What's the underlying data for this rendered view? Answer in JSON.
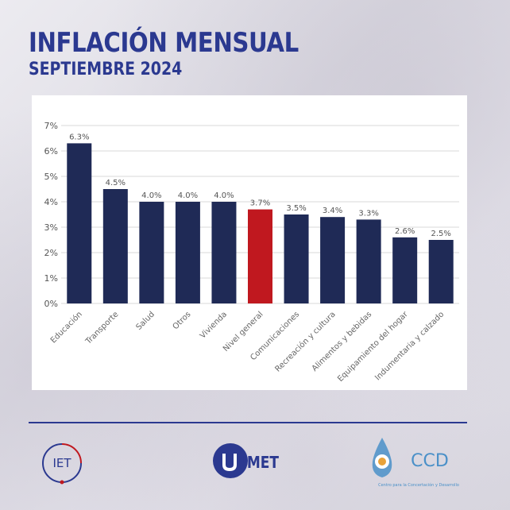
{
  "header": {
    "title": "INFLACIÓN MENSUAL",
    "subtitle": "SEPTIEMBRE 2024"
  },
  "colors": {
    "brand_blue": "#2b3990",
    "bar_default": "#1f2a56",
    "bar_highlight": "#c0181f",
    "ccd_blue": "#4a90c8"
  },
  "chart_data": {
    "type": "bar",
    "title": "",
    "xlabel": "",
    "ylabel": "",
    "ylim": [
      0,
      7
    ],
    "yticks": [
      "0%",
      "1%",
      "2%",
      "3%",
      "4%",
      "5%",
      "6%",
      "7%"
    ],
    "grid": true,
    "categories": [
      "Educación",
      "Transporte",
      "Salud",
      "Otros",
      "Vivienda",
      "Nivel general",
      "Comunicaciones",
      "Recreación y cultura",
      "Alimentos y bebidas",
      "Equipamiento del hogar",
      "Indumentaria y calzado"
    ],
    "values": [
      6.3,
      4.5,
      4.0,
      4.0,
      4.0,
      3.7,
      3.5,
      3.4,
      3.3,
      2.6,
      2.5
    ],
    "data_labels": [
      "6.3%",
      "4.5%",
      "4.0%",
      "4.0%",
      "4.0%",
      "3.7%",
      "3.5%",
      "3.4%",
      "3.3%",
      "2.6%",
      "2.5%"
    ],
    "highlight_category": "Nivel general"
  },
  "logos": {
    "iet": {
      "text": "IET"
    },
    "umet": {
      "text": "UMET"
    },
    "ccd": {
      "text": "CCD",
      "tagline": "Centro para la Concertación y Desarrollo"
    }
  }
}
